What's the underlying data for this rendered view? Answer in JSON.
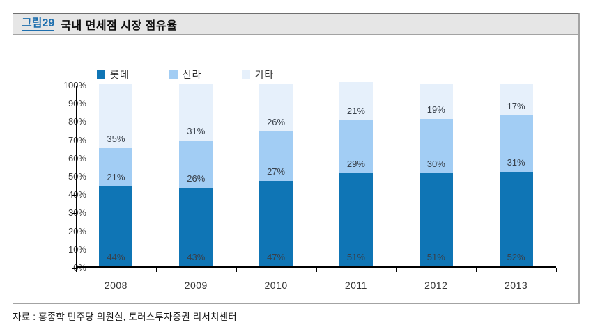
{
  "figure": {
    "tag": "그림29",
    "title": "국내 면세점 시장 점유율"
  },
  "source_note": "자료 : 홍종학 민주당 의원실, 토러스투자증권 리서치센터",
  "colors": {
    "lotte": "#0f75b5",
    "shilla": "#a2cdf4",
    "etc": "#e6f0fb",
    "tag_blue": "#1e6fae",
    "header_bg": "#e6e6e6",
    "axis": "#000000",
    "data_label": "#38404a"
  },
  "chart_data": {
    "type": "bar",
    "stacked": true,
    "title": "국내 면세점 시장 점유율",
    "categories": [
      "2008",
      "2009",
      "2010",
      "2011",
      "2012",
      "2013"
    ],
    "series": [
      {
        "name": "롯데",
        "color_key": "lotte",
        "values": [
          44,
          43,
          47,
          51,
          51,
          52
        ]
      },
      {
        "name": "신라",
        "color_key": "shilla",
        "values": [
          21,
          26,
          27,
          29,
          30,
          31
        ]
      },
      {
        "name": "기타",
        "color_key": "etc",
        "values": [
          35,
          31,
          26,
          21,
          19,
          17
        ]
      }
    ],
    "unit": "%",
    "y_ticks": [
      "0%",
      "10%",
      "20%",
      "30%",
      "40%",
      "50%",
      "60%",
      "70%",
      "80%",
      "90%",
      "100%"
    ],
    "ylim": [
      0,
      100
    ],
    "grid": false,
    "legend_position": "top",
    "data_labels": "inside-base"
  }
}
